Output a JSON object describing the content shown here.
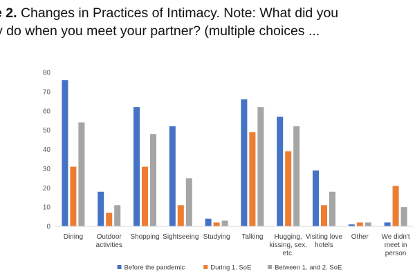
{
  "caption": {
    "label": "e 2.",
    "text": " Changes in Practices of Intimacy. Note: What did you",
    "line2": "y do when you meet your partner? (multiple choices ..."
  },
  "chart_data": {
    "type": "bar",
    "title": "",
    "xlabel": "",
    "ylabel": "",
    "ylim": [
      0,
      80
    ],
    "yticks": [
      0,
      10,
      20,
      30,
      40,
      50,
      60,
      70,
      80
    ],
    "grid": false,
    "legend_position": "bottom",
    "categories": [
      [
        "Dining"
      ],
      [
        "Outdoor",
        "activities"
      ],
      [
        "Shopping"
      ],
      [
        "Sightseeing"
      ],
      [
        "Studying"
      ],
      [
        "Talking"
      ],
      [
        "Hugging,",
        "kissing, sex,",
        "etc."
      ],
      [
        "Visiting love",
        "hotels"
      ],
      [
        "Other"
      ],
      [
        "We didn't",
        "meet in",
        "person"
      ]
    ],
    "series": [
      {
        "name": "Before the pandemic",
        "color": "#4472C4",
        "values": [
          76,
          18,
          62,
          52,
          4,
          66,
          57,
          29,
          1,
          2
        ]
      },
      {
        "name": "During 1. SoE",
        "color": "#ED7D31",
        "values": [
          31,
          7,
          31,
          11,
          2,
          49,
          39,
          11,
          2,
          21
        ]
      },
      {
        "name": "Between 1. and 2. SoE",
        "color": "#A5A5A5",
        "values": [
          54,
          11,
          48,
          25,
          3,
          62,
          52,
          18,
          2,
          10
        ]
      }
    ]
  }
}
